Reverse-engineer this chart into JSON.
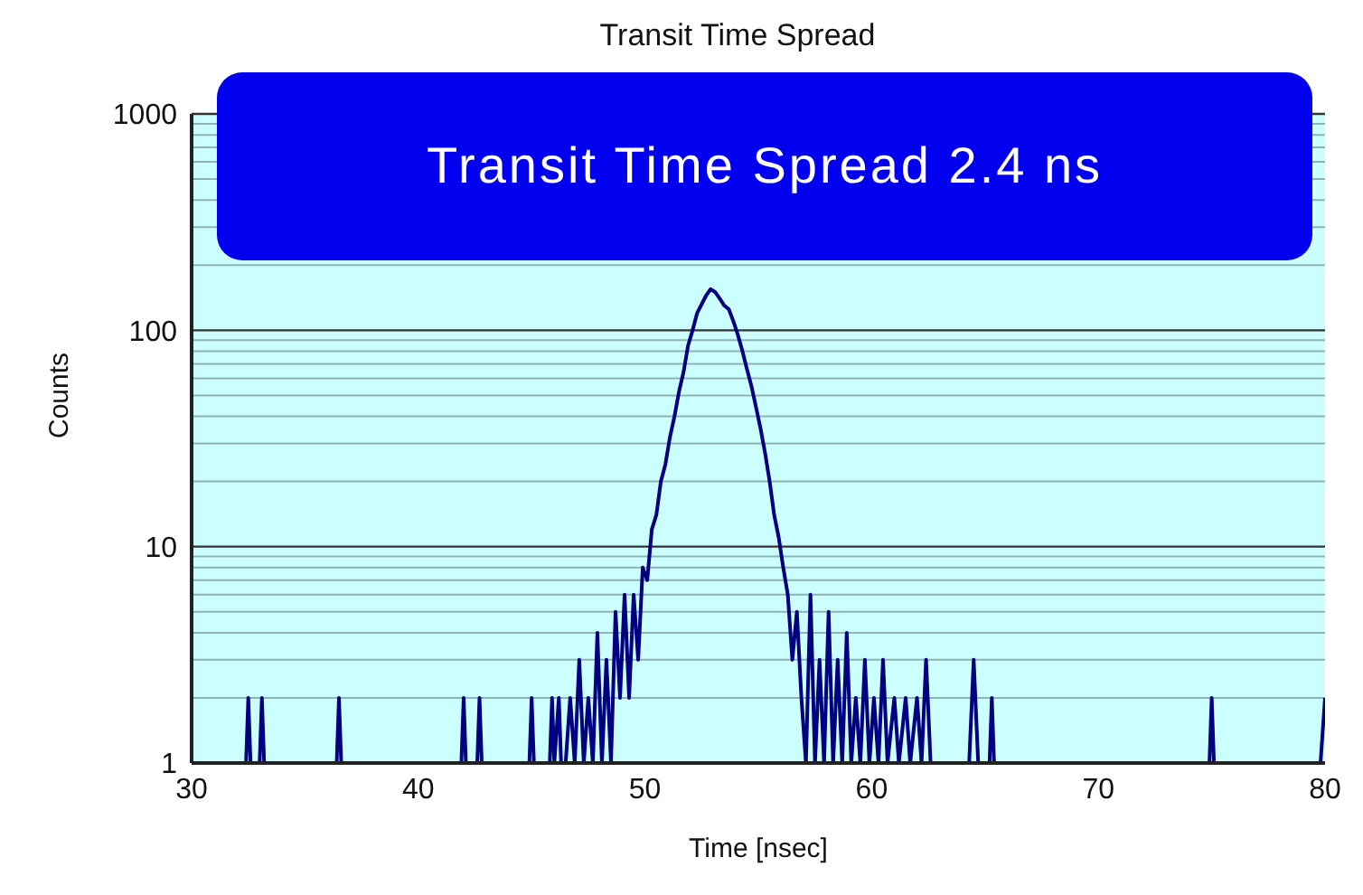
{
  "chart_data": {
    "type": "line",
    "title": "Transit Time Spread",
    "xlabel": "Time [nsec]",
    "ylabel": "Counts",
    "annotations": [
      "Transit Time Spread  2.4 ns"
    ],
    "log": "y",
    "grid": "y",
    "marker": "none",
    "line_style": "solid",
    "legend": false,
    "xlim": [
      30,
      80
    ],
    "xticks": [
      30,
      40,
      50,
      60,
      70,
      80
    ],
    "ylim": [
      1,
      1000
    ],
    "yticks": [
      1,
      10,
      100,
      1000
    ],
    "series": [
      {
        "color": "#000080",
        "x": [
          30,
          32.4,
          32.5,
          32.6,
          33.0,
          33.1,
          33.2,
          36.4,
          36.5,
          36.6,
          41.9,
          42.0,
          42.1,
          42.6,
          42.7,
          42.8,
          44.9,
          45.0,
          45.1,
          45.8,
          45.9,
          46.0,
          46.2,
          46.3,
          46.5,
          46.7,
          46.9,
          47.1,
          47.3,
          47.5,
          47.7,
          47.9,
          48.1,
          48.3,
          48.5,
          48.7,
          48.9,
          49.1,
          49.3,
          49.5,
          49.7,
          49.9,
          50.1,
          50.3,
          50.5,
          50.7,
          50.9,
          51.1,
          51.3,
          51.5,
          51.7,
          51.9,
          52.1,
          52.3,
          52.5,
          52.7,
          52.9,
          53.1,
          53.3,
          53.5,
          53.7,
          53.9,
          54.1,
          54.3,
          54.5,
          54.7,
          54.9,
          55.1,
          55.3,
          55.5,
          55.7,
          55.9,
          56.1,
          56.3,
          56.5,
          56.7,
          56.9,
          57.1,
          57.3,
          57.5,
          57.7,
          57.9,
          58.1,
          58.3,
          58.5,
          58.7,
          58.9,
          59.1,
          59.3,
          59.5,
          59.7,
          59.9,
          60.1,
          60.3,
          60.5,
          60.7,
          61.0,
          61.2,
          61.5,
          61.7,
          62.0,
          62.2,
          62.4,
          62.6,
          64.3,
          64.5,
          64.7,
          65.2,
          65.3,
          65.4,
          74.9,
          75.0,
          75.1,
          79.8,
          80
        ],
        "values": [
          1,
          1,
          2,
          1,
          1,
          2,
          1,
          1,
          2,
          1,
          1,
          2,
          1,
          1,
          2,
          1,
          1,
          2,
          1,
          1,
          2,
          1,
          2,
          1,
          1,
          2,
          1,
          3,
          1,
          2,
          1,
          4,
          1,
          3,
          1,
          5,
          2,
          6,
          2,
          6,
          3,
          8,
          7,
          12,
          14,
          20,
          24,
          32,
          40,
          52,
          64,
          85,
          100,
          120,
          132,
          145,
          155,
          150,
          140,
          130,
          125,
          110,
          95,
          80,
          66,
          55,
          44,
          35,
          27,
          20,
          14,
          11,
          8,
          6,
          3,
          5,
          2,
          1,
          6,
          1,
          3,
          1,
          5,
          1,
          3,
          1,
          4,
          1,
          2,
          1,
          3,
          1,
          2,
          1,
          3,
          1,
          2,
          1,
          2,
          1,
          2,
          1,
          3,
          1,
          1,
          3,
          1,
          1,
          2,
          1,
          1,
          2,
          1,
          1,
          2
        ]
      }
    ]
  }
}
